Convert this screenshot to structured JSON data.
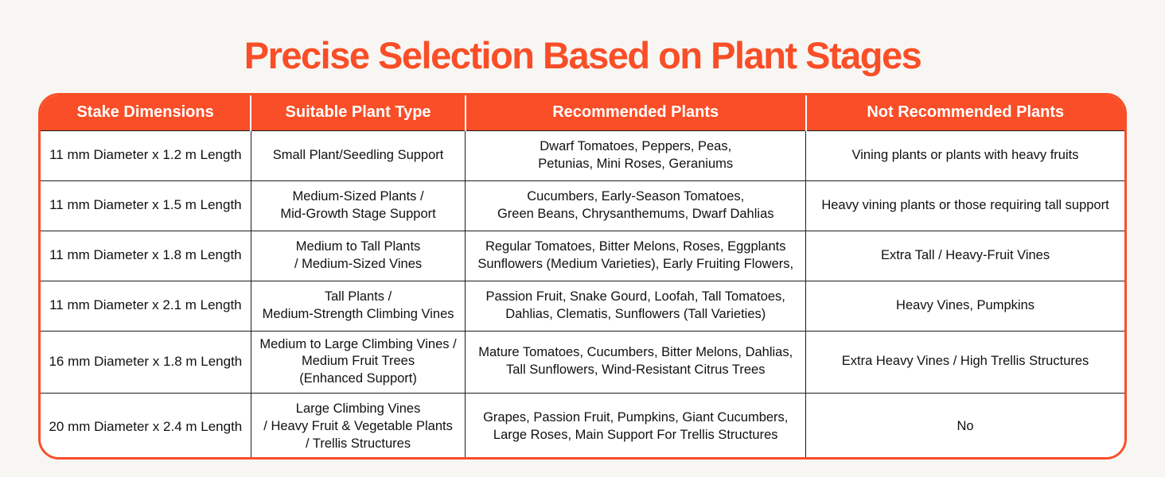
{
  "page": {
    "title": "Precise Selection Based on Plant Stages"
  },
  "colors": {
    "accent_orange": "#F94E27",
    "page_background": "#F7F6F3",
    "table_background": "#FFFFFF",
    "header_text": "#FFFFFF",
    "body_text": "#111111",
    "grid_line": "#1C1C1C"
  },
  "table": {
    "headers": {
      "stake_dimensions": "Stake Dimensions",
      "suitable_plant_type": "Suitable Plant Type",
      "recommended_plants": "Recommended Plants",
      "not_recommended_plants": "Not Recommended Plants"
    },
    "rows": [
      {
        "stake_dimensions": "11 mm Diameter x 1.2 m Length",
        "suitable_plant_type": "Small Plant/Seedling Support",
        "recommended_plants": "Dwarf Tomatoes, Peppers, Peas,\nPetunias, Mini Roses, Geraniums",
        "not_recommended_plants": "Vining plants or plants with heavy fruits"
      },
      {
        "stake_dimensions": "11 mm Diameter x 1.5 m Length",
        "suitable_plant_type": "Medium-Sized Plants /\nMid-Growth Stage Support",
        "recommended_plants": "Cucumbers, Early-Season Tomatoes,\nGreen Beans, Chrysanthemums, Dwarf Dahlias",
        "not_recommended_plants": "Heavy vining plants or those requiring tall support"
      },
      {
        "stake_dimensions": "11 mm Diameter x 1.8 m Length",
        "suitable_plant_type": "Medium to Tall Plants\n/ Medium-Sized Vines",
        "recommended_plants": "Regular Tomatoes, Bitter Melons, Roses, Eggplants\nSunflowers (Medium Varieties), Early Fruiting Flowers,",
        "not_recommended_plants": "Extra Tall / Heavy-Fruit Vines"
      },
      {
        "stake_dimensions": "11 mm Diameter x 2.1 m Length",
        "suitable_plant_type": "Tall Plants /\nMedium-Strength Climbing Vines",
        "recommended_plants": "Passion Fruit, Snake Gourd, Loofah, Tall Tomatoes,\nDahlias, Clematis, Sunflowers (Tall Varieties)",
        "not_recommended_plants": "Heavy Vines, Pumpkins"
      },
      {
        "stake_dimensions": "16 mm Diameter x 1.8 m Length",
        "suitable_plant_type": "Medium to Large Climbing Vines /\nMedium Fruit Trees\n(Enhanced Support)",
        "recommended_plants": "Mature Tomatoes, Cucumbers, Bitter Melons, Dahlias,\nTall Sunflowers, Wind-Resistant Citrus Trees",
        "not_recommended_plants": "Extra Heavy Vines / High Trellis Structures"
      },
      {
        "stake_dimensions": "20 mm Diameter x 2.4 m Length",
        "suitable_plant_type": "Large Climbing Vines\n/ Heavy Fruit & Vegetable Plants\n/ Trellis Structures",
        "recommended_plants": "Grapes, Passion Fruit, Pumpkins, Giant Cucumbers,\nLarge Roses, Main Support For Trellis Structures",
        "not_recommended_plants": "No"
      }
    ]
  }
}
